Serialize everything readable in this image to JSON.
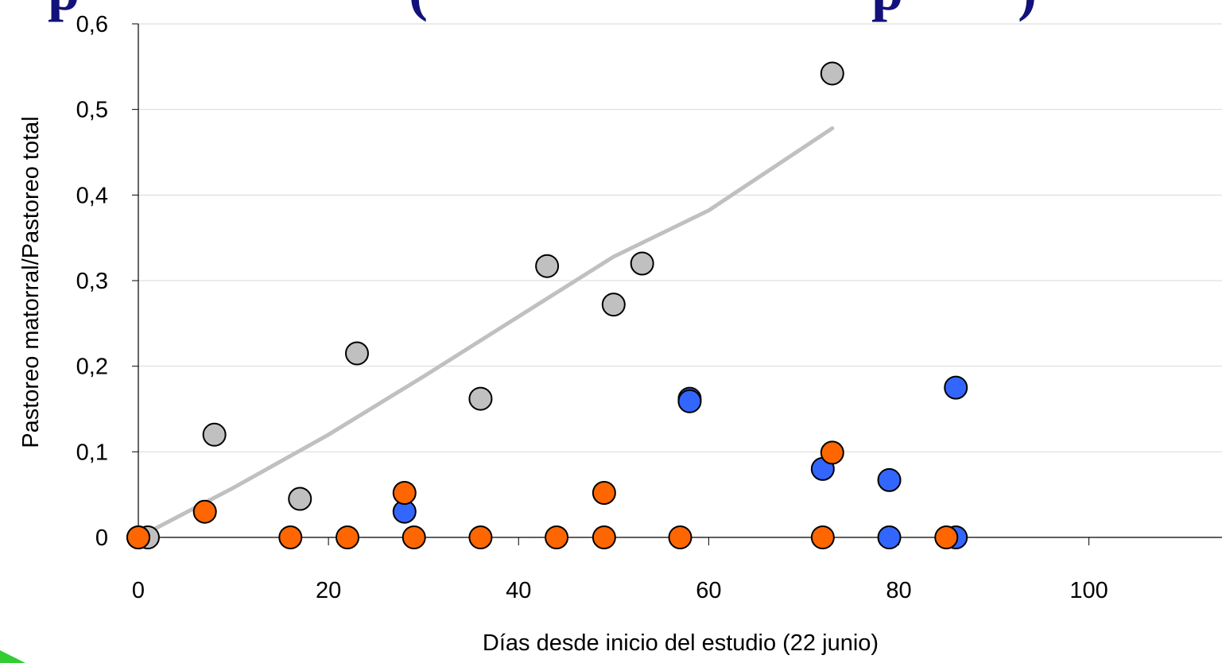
{
  "slide": {
    "title_fragment": "p                       (                               p        )",
    "title_color": "#12127a"
  },
  "chart_data": {
    "type": "scatter",
    "xlabel": "Días desde inicio del estudio (22 junio)",
    "ylabel": "Pastoreo matorral/Pastoreo total",
    "xlim": [
      0,
      114
    ],
    "ylim": [
      0,
      0.6
    ],
    "x_ticks": [
      0,
      20,
      40,
      60,
      80,
      100
    ],
    "x_tick_labels": [
      "0",
      "20",
      "40",
      "60",
      "80",
      "100"
    ],
    "y_ticks": [
      0,
      0.1,
      0.2,
      0.3,
      0.4,
      0.5,
      0.6
    ],
    "y_tick_labels": [
      "0",
      "0,1",
      "0,2",
      "0,3",
      "0,4",
      "0,5",
      "0,6"
    ],
    "grid": "horizontal",
    "series": [
      {
        "color": "#c0c0c0",
        "points": [
          [
            1,
            0
          ],
          [
            8,
            0.12
          ],
          [
            17,
            0.045
          ],
          [
            23,
            0.215
          ],
          [
            36,
            0.162
          ],
          [
            43,
            0.317
          ],
          [
            50,
            0.272
          ],
          [
            53,
            0.32
          ],
          [
            73,
            0.542
          ]
        ]
      },
      {
        "color": "#3366ff",
        "points": [
          [
            0,
            0
          ],
          [
            28,
            0.03
          ],
          [
            58,
            0.162
          ],
          [
            58,
            0.159
          ],
          [
            72,
            0.08
          ],
          [
            79,
            0.067
          ],
          [
            79,
            0
          ],
          [
            86,
            0.175
          ],
          [
            86,
            0
          ]
        ]
      },
      {
        "color": "#ff6600",
        "points": [
          [
            0,
            0
          ],
          [
            7,
            0.03
          ],
          [
            16,
            0
          ],
          [
            22,
            0
          ],
          [
            28,
            0.052
          ],
          [
            29,
            0
          ],
          [
            36,
            0
          ],
          [
            44,
            0
          ],
          [
            49,
            0.052
          ],
          [
            49,
            0
          ],
          [
            57,
            0
          ],
          [
            72,
            0
          ],
          [
            73,
            0.099
          ],
          [
            85,
            0
          ]
        ]
      }
    ],
    "trendline": {
      "color": "#c0c0c0",
      "points": [
        [
          0,
          0
        ],
        [
          10,
          0.058
        ],
        [
          20,
          0.12
        ],
        [
          30,
          0.188
        ],
        [
          40,
          0.258
        ],
        [
          50,
          0.328
        ],
        [
          60,
          0.382
        ],
        [
          73,
          0.478
        ]
      ]
    }
  }
}
